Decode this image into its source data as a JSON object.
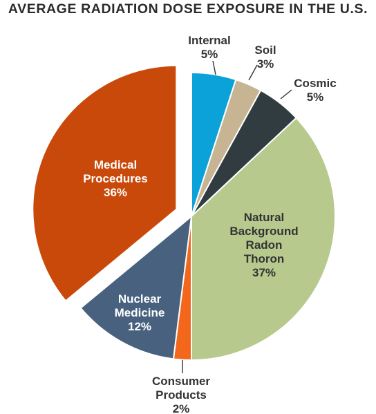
{
  "title": "AVERAGE RADIATION DOSE EXPOSURE IN THE U.S.",
  "chart_data": {
    "type": "pie",
    "title": "AVERAGE RADIATION DOSE EXPOSURE IN THE U.S.",
    "slices": [
      {
        "key": "internal",
        "label_lines": [
          "Internal"
        ],
        "value": 5,
        "value_text": "5%",
        "color": "#0aa2d8",
        "label_style": "outside"
      },
      {
        "key": "soil",
        "label_lines": [
          "Soil"
        ],
        "value": 3,
        "value_text": "3%",
        "color": "#c7b493",
        "label_style": "outside"
      },
      {
        "key": "cosmic",
        "label_lines": [
          "Cosmic"
        ],
        "value": 5,
        "value_text": "5%",
        "color": "#313c40",
        "label_style": "outside"
      },
      {
        "key": "natural-background",
        "label_lines": [
          "Natural",
          "Background",
          "",
          "Radon",
          "Thoron"
        ],
        "value": 37,
        "value_text": "37%",
        "color": "#b7c98d",
        "label_style": "inside-dark"
      },
      {
        "key": "consumer-products",
        "label_lines": [
          "Consumer",
          "Products"
        ],
        "value": 2,
        "value_text": "2%",
        "color": "#f3671d",
        "label_style": "outside"
      },
      {
        "key": "nuclear-medicine",
        "label_lines": [
          "Nuclear",
          "Medicine"
        ],
        "value": 12,
        "value_text": "12%",
        "color": "#48617f",
        "label_style": "inside"
      },
      {
        "key": "medical-procedures",
        "label_lines": [
          "Medical",
          "Procedures"
        ],
        "value": 36,
        "value_text": "36%",
        "color": "#c9490a",
        "label_style": "inside",
        "exploded": true
      }
    ]
  }
}
